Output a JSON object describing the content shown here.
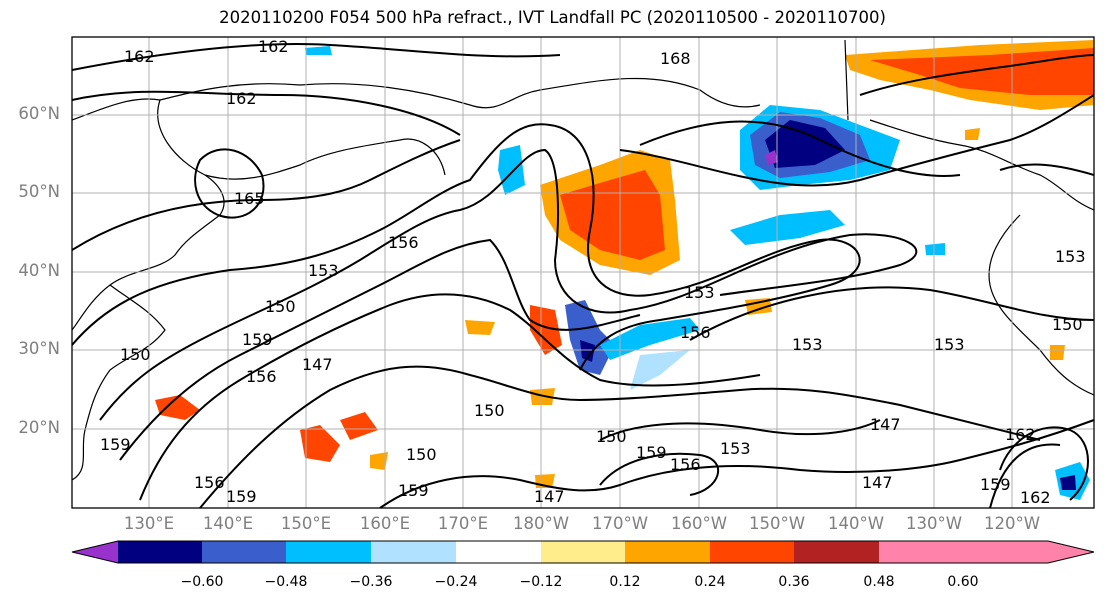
{
  "title": "2020110200 F054 500 hPa refract., IVT Landfall PC (2020110500 - 2020110700)",
  "lat_labels": [
    "60°N",
    "50°N",
    "40°N",
    "30°N",
    "20°N"
  ],
  "lon_labels": [
    "130°E",
    "140°E",
    "150°E",
    "160°E",
    "170°E",
    "180°W",
    "170°W",
    "160°W",
    "150°W",
    "140°W",
    "130°W",
    "120°W"
  ],
  "colorbar": {
    "ticks": [
      "−0.60",
      "−0.48",
      "−0.36",
      "−0.24",
      "−0.12",
      "0.12",
      "0.24",
      "0.36",
      "0.48",
      "0.60"
    ],
    "colors": [
      "#9932cc",
      "#000080",
      "#3a5fcd",
      "#00bfff",
      "#b0e2ff",
      "#ffffff",
      "#ffec8b",
      "#ffa500",
      "#ff4500",
      "#b22222",
      "#ff82ab"
    ]
  },
  "contour_labels": [
    "162",
    "162",
    "162",
    "165",
    "156",
    "153",
    "150",
    "159",
    "156",
    "147",
    "150",
    "153",
    "156",
    "159",
    "150",
    "147",
    "153",
    "156",
    "162",
    "159",
    "159",
    "150",
    "153",
    "147",
    "150",
    "159",
    "156",
    "153",
    "147",
    "159",
    "162",
    "150",
    "168",
    "153"
  ]
}
